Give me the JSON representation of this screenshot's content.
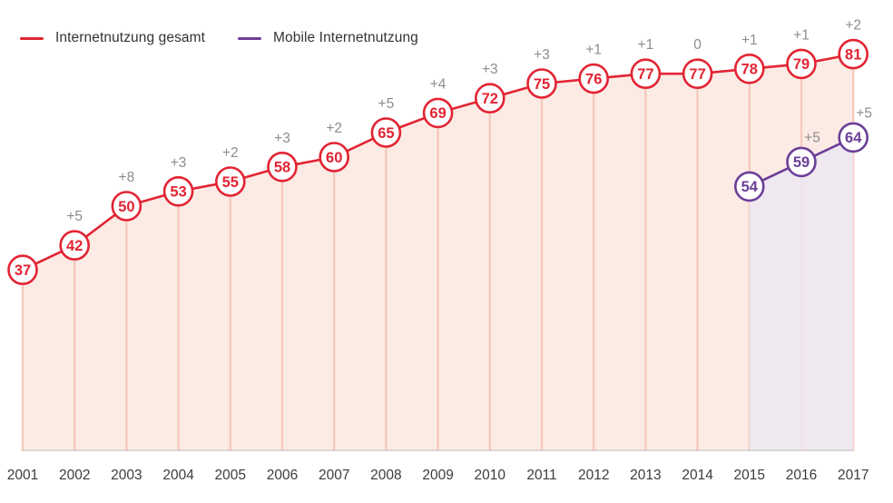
{
  "legend": [
    {
      "label": "Internetnutzung gesamt",
      "color": "#E22433"
    },
    {
      "label": "Mobile Internetnutzung",
      "color": "#6C3F97"
    }
  ],
  "colors": {
    "series_total": "#E22433",
    "series_mobile": "#6C3F97",
    "area_total": "#FCEBE5",
    "area_mobile": "#EDE7F3",
    "dropline": "#F6C9BB",
    "baseline": "#CFC9CE",
    "delta_label": "#8C8C8C",
    "axis_label": "#3C3C3C",
    "point_fill": "#FFFFFF"
  },
  "chart_data": {
    "type": "line",
    "title": "",
    "xlabel": "",
    "ylabel": "",
    "ylim": [
      0,
      92
    ],
    "grid": false,
    "legend_position": "top-left",
    "categories": [
      "2001",
      "2002",
      "2003",
      "2004",
      "2005",
      "2006",
      "2007",
      "2008",
      "2009",
      "2010",
      "2011",
      "2012",
      "2013",
      "2014",
      "2015",
      "2016",
      "2017"
    ],
    "series": [
      {
        "name": "Internetnutzung gesamt",
        "color": "#E22433",
        "area_color": "#FCEBE5",
        "start_index": 0,
        "values": [
          37,
          42,
          50,
          53,
          55,
          58,
          60,
          65,
          69,
          72,
          75,
          76,
          77,
          77,
          78,
          79,
          81
        ],
        "deltas": [
          null,
          "+5",
          "+8",
          "+3",
          "+2",
          "+3",
          "+2",
          "+5",
          "+4",
          "+3",
          "+3",
          "+1",
          "+1",
          "0",
          "+1",
          "+1",
          "+2"
        ]
      },
      {
        "name": "Mobile Internetnutzung",
        "color": "#6C3F97",
        "area_color": "#EDE7F3",
        "start_index": 14,
        "values": [
          54,
          59,
          64
        ],
        "deltas": [
          null,
          "+5",
          "+5"
        ]
      }
    ]
  }
}
